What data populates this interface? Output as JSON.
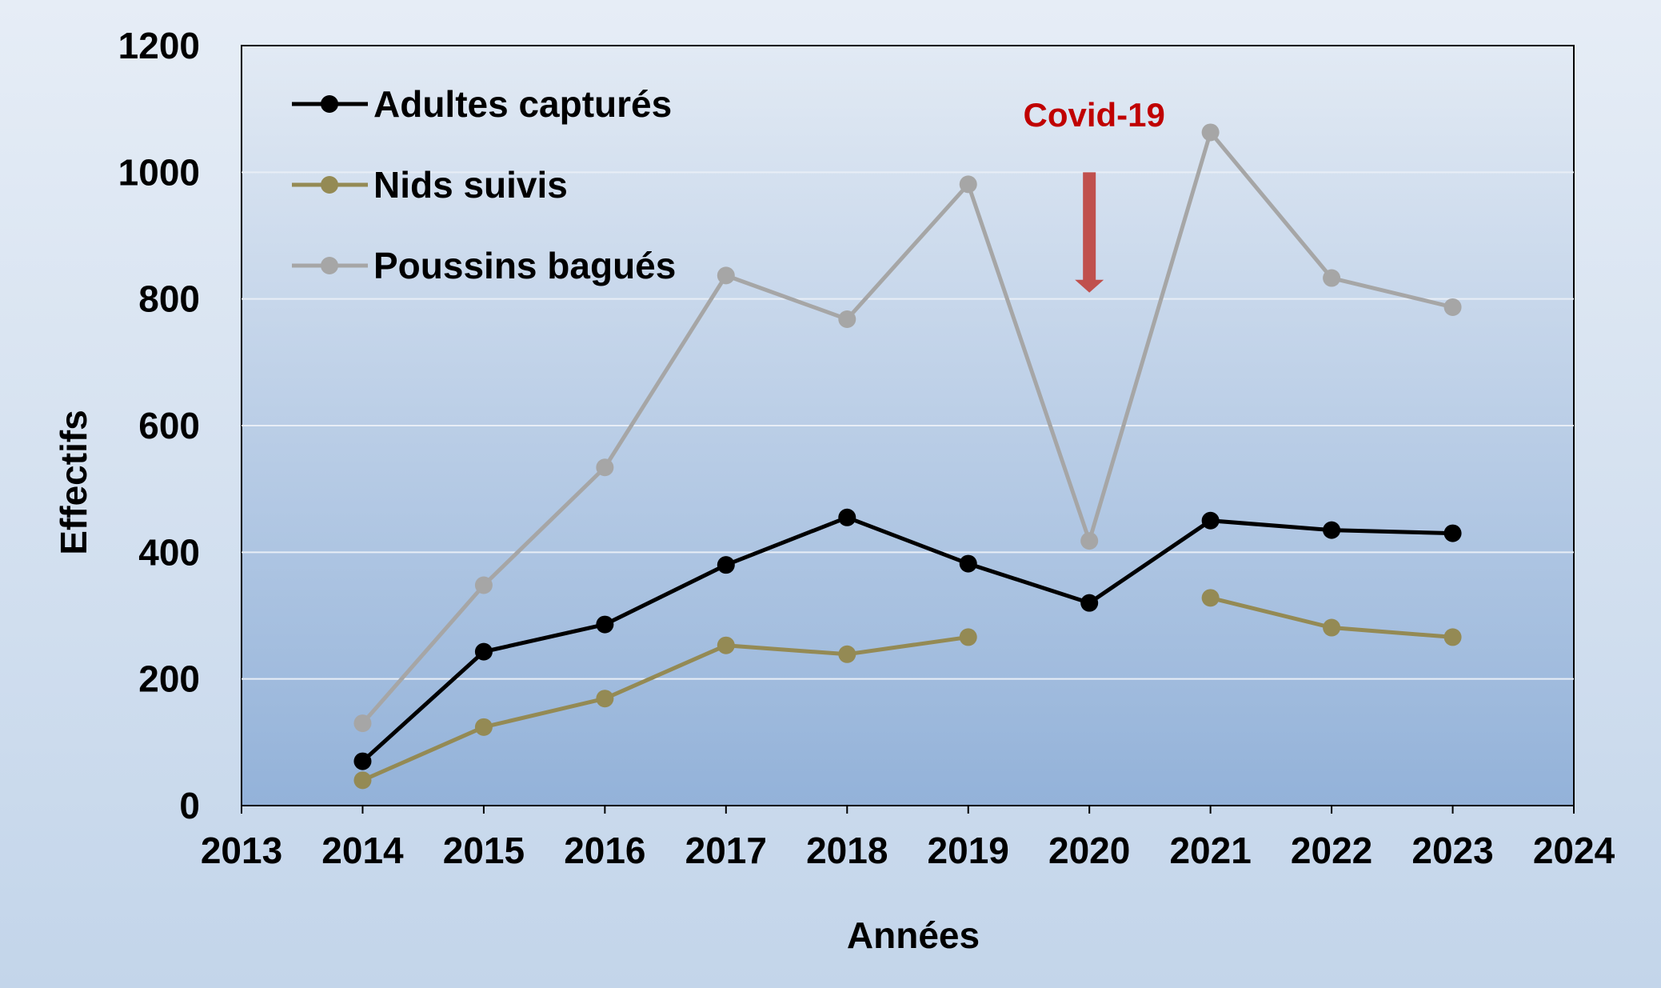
{
  "chart_data": {
    "type": "line",
    "title": "",
    "xlabel": "Années",
    "ylabel": "Effectifs",
    "xlim": [
      2013,
      2024
    ],
    "ylim": [
      0,
      1200
    ],
    "x_ticks": [
      2013,
      2014,
      2015,
      2016,
      2017,
      2018,
      2019,
      2020,
      2021,
      2022,
      2023,
      2024
    ],
    "y_ticks": [
      0,
      200,
      400,
      600,
      800,
      1000,
      1200
    ],
    "grid": "horizontal",
    "legend_position": "top-left",
    "x": [
      2014,
      2015,
      2016,
      2017,
      2018,
      2019,
      2020,
      2021,
      2022,
      2023
    ],
    "series": [
      {
        "name": "Adultes capturés",
        "color": "#000000",
        "values": [
          70,
          243,
          286,
          380,
          455,
          382,
          320,
          450,
          435,
          430
        ]
      },
      {
        "name": "Nids suivis",
        "color": "#948a54",
        "values": [
          40,
          124,
          169,
          253,
          239,
          266,
          null,
          328,
          281,
          266
        ]
      },
      {
        "name": "Poussins bagués",
        "color": "#a6a6a6",
        "values": [
          130,
          348,
          534,
          837,
          768,
          981,
          418,
          1063,
          833,
          787
        ]
      }
    ],
    "annotations": [
      {
        "text": "Covid-19",
        "x": 2020,
        "color": "#c00000",
        "arrow_color": "#c0504d",
        "arrow_from": 1000,
        "arrow_to": 810
      }
    ]
  }
}
